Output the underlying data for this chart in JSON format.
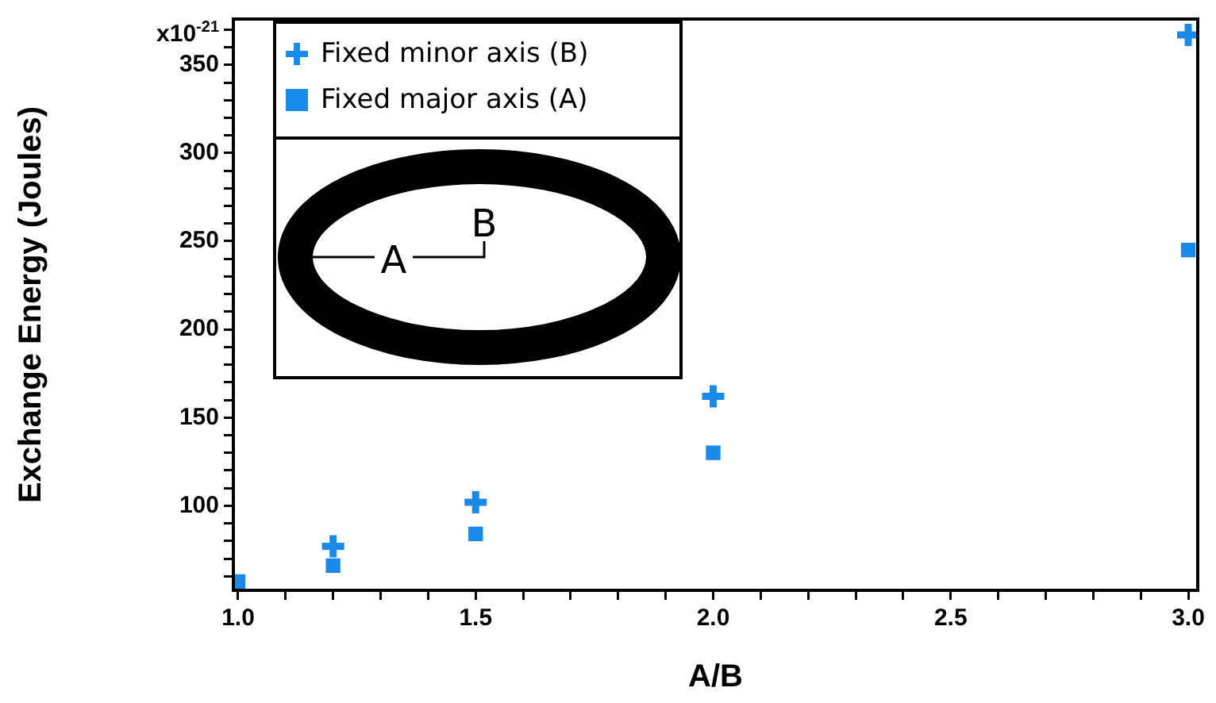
{
  "chart_data": {
    "type": "scatter",
    "xlabel": "A/B",
    "ylabel": "Exchange Energy (Joules)",
    "x": [
      1.0,
      1.2,
      1.5,
      2.0,
      3.0
    ],
    "series": [
      {
        "name": "Fixed minor axis (B)",
        "color": "#1a8ae6",
        "marker": "cross",
        "values": [
          null,
          77,
          102,
          162,
          367
        ]
      },
      {
        "name": "Fixed major axis (A)",
        "color": "#1a8ae6",
        "marker": "square",
        "values": [
          57,
          66,
          84,
          130,
          245
        ]
      }
    ],
    "xlim": [
      0.99,
      3.02
    ],
    "xticks": [
      {
        "value": 1.0,
        "label": "1.0"
      },
      {
        "value": 1.1,
        "label": null
      },
      {
        "value": 1.2,
        "label": null
      },
      {
        "value": 1.3,
        "label": null
      },
      {
        "value": 1.4,
        "label": null
      },
      1.5,
      {
        "value": 1.6,
        "label": null
      },
      {
        "value": 1.7,
        "label": null
      },
      {
        "value": 1.8,
        "label": null
      },
      {
        "value": 1.9,
        "label": null
      },
      {
        "value": 2.0,
        "label": "2.0"
      },
      {
        "value": 2.1,
        "label": null
      },
      {
        "value": 2.2,
        "label": null
      },
      {
        "value": 2.3,
        "label": null
      },
      {
        "value": 2.4,
        "label": null
      },
      2.5,
      {
        "value": 2.6,
        "label": null
      },
      {
        "value": 2.7,
        "label": null
      },
      {
        "value": 2.8,
        "label": null
      },
      {
        "value": 2.9,
        "label": null
      },
      {
        "value": 3.0,
        "label": "3.0"
      }
    ],
    "ylim": [
      52,
      376
    ],
    "yticks": [
      {
        "value": 60,
        "label": null
      },
      {
        "value": 70,
        "label": null
      },
      {
        "value": 80,
        "label": null
      },
      {
        "value": 90,
        "label": null
      },
      100,
      {
        "value": 110,
        "label": null
      },
      {
        "value": 120,
        "label": null
      },
      {
        "value": 130,
        "label": null
      },
      {
        "value": 140,
        "label": null
      },
      150,
      {
        "value": 160,
        "label": null
      },
      {
        "value": 170,
        "label": null
      },
      {
        "value": 180,
        "label": null
      },
      {
        "value": 190,
        "label": null
      },
      200,
      {
        "value": 210,
        "label": null
      },
      {
        "value": 220,
        "label": null
      },
      {
        "value": 230,
        "label": null
      },
      {
        "value": 240,
        "label": null
      },
      250,
      {
        "value": 260,
        "label": null
      },
      {
        "value": 270,
        "label": null
      },
      {
        "value": 280,
        "label": null
      },
      {
        "value": 290,
        "label": null
      },
      300,
      {
        "value": 310,
        "label": null
      },
      {
        "value": 320,
        "label": null
      },
      {
        "value": 330,
        "label": null
      },
      {
        "value": 340,
        "label": null
      },
      350,
      {
        "value": 360,
        "label": null
      },
      {
        "value": 370,
        "label": null
      }
    ],
    "grid": false,
    "legend": "top left",
    "annotations": [
      "A",
      "B",
      "x10$^{-21}$"
    ]
  }
}
